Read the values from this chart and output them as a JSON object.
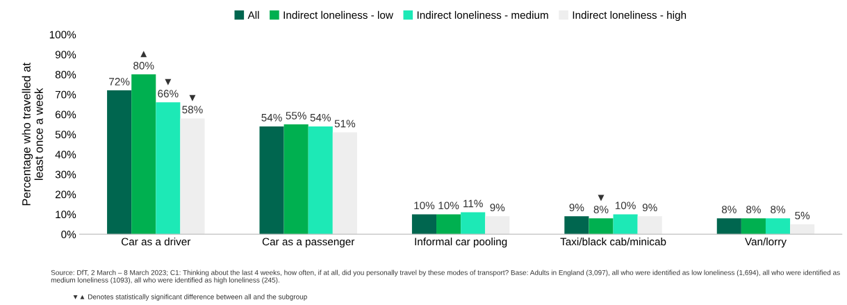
{
  "chart_data": {
    "type": "bar",
    "ylabel": "Percentage who travelled at least once a week",
    "categories": [
      "Car as a driver",
      "Car as a passenger",
      "Informal car pooling",
      "Taxi/black cab/minicab",
      "Van/lorry"
    ],
    "series": [
      {
        "name": "All",
        "color": "#00664f",
        "values": [
          72,
          54,
          10,
          9,
          8
        ],
        "value_labels": [
          "72%",
          "54%",
          "10%",
          "9%",
          "8%"
        ]
      },
      {
        "name": "Indirect loneliness - low",
        "color": "#00b050",
        "values": [
          80,
          55,
          10,
          8,
          8
        ],
        "value_labels": [
          "▲\n80%",
          "55%",
          "10%",
          "▼\n8%",
          "8%"
        ]
      },
      {
        "name": "Indirect loneliness - medium",
        "color": "#1de9b6",
        "values": [
          66,
          54,
          11,
          10,
          8
        ],
        "value_labels": [
          "▼\n66%",
          "54%",
          "11%",
          "10%",
          "8%"
        ]
      },
      {
        "name": "Indirect loneliness - high",
        "color": "#eeeeee",
        "values": [
          58,
          51,
          9,
          9,
          5
        ],
        "value_labels": [
          "▼\n58%",
          "51%",
          "9%",
          "9%",
          "5%"
        ]
      }
    ],
    "ylim": [
      0,
      100
    ],
    "yticks": [
      {
        "value": 0,
        "label": "0%"
      },
      {
        "value": 10,
        "label": "10%"
      },
      {
        "value": 20,
        "label": "20%"
      },
      {
        "value": 30,
        "label": "30%"
      },
      {
        "value": 40,
        "label": "40%"
      },
      {
        "value": 50,
        "label": "50%"
      },
      {
        "value": 60,
        "label": "60%"
      },
      {
        "value": 70,
        "label": "70%"
      },
      {
        "value": 80,
        "label": "80%"
      },
      {
        "value": 90,
        "label": "90%"
      },
      {
        "value": 100,
        "label": "100%"
      }
    ],
    "grid": false,
    "legend": "top",
    "annotations": [
      "Source: DfT, 2 March – 8 March 2023; C1: Thinking about the last 4 weeks, how often, if at all, did you personally travel by these modes of transport? Base: Adults in England (3,097), all who were identified as low loneliness (1,694), all who were identified as medium loneliness (1093), all who were identified as high loneliness (245).",
      "▼▲ Denotes statistically significant difference between all and the subgroup"
    ]
  }
}
